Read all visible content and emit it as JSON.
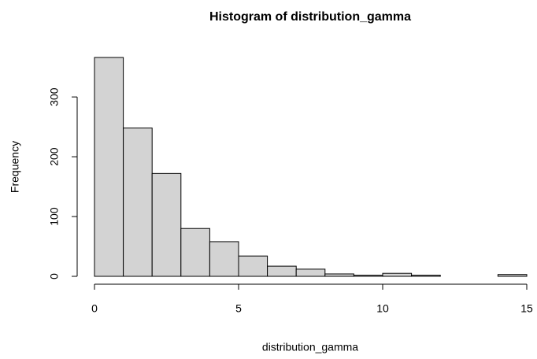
{
  "chart_data": {
    "type": "histogram",
    "title": "Histogram of distribution_gamma",
    "x_label": "distribution_gamma",
    "y_label": "Frequency",
    "bins": [
      0,
      1,
      2,
      3,
      4,
      5,
      6,
      7,
      8,
      9,
      10,
      11,
      12,
      13,
      14,
      15
    ],
    "counts": [
      366,
      248,
      172,
      80,
      58,
      34,
      17,
      12,
      4,
      2,
      5,
      2,
      0,
      0,
      3
    ],
    "color": "#d3d3d3",
    "xlim": [
      0,
      15
    ],
    "xticks": [
      0,
      5,
      10,
      15
    ],
    "ylim": [
      0,
      366
    ],
    "yticks": [
      0,
      100,
      200,
      300
    ]
  }
}
